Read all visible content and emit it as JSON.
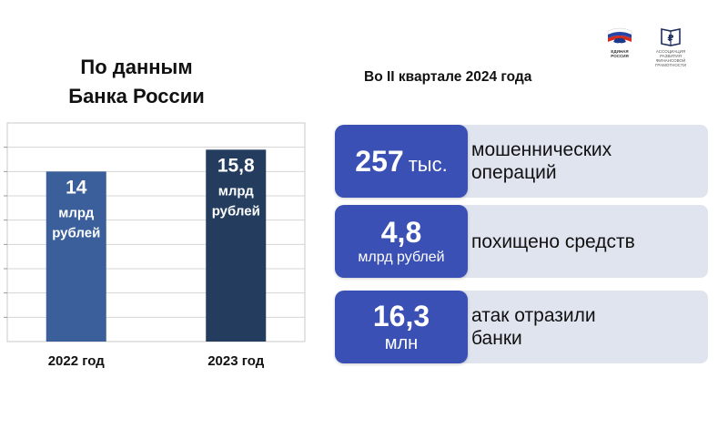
{
  "heading_left": [
    "По данным",
    "Банка России"
  ],
  "heading_right": "Во II квартале 2024 года",
  "logos": {
    "party_text": [
      "ЕДИНАЯ",
      "РОССИЯ"
    ],
    "assoc_text": "АССОЦИАЦИЯ РАЗВИТИЯ ФИНАНСОВОЙ ГРАМОТНОСТИ",
    "party_icon": "bear-flag-icon",
    "assoc_icon": "ruble-book-icon"
  },
  "chart_data": {
    "type": "bar",
    "categories": [
      "2022 год",
      "2023 год"
    ],
    "values": [
      14,
      15.8
    ],
    "value_labels": [
      [
        "14",
        "млрд",
        "рублей"
      ],
      [
        "15,8",
        "млрд",
        "рублей"
      ]
    ],
    "colors": [
      "#3a5f9a",
      "#243c5e"
    ],
    "grid": true,
    "ylim": [
      0,
      18
    ]
  },
  "stats": [
    {
      "value": "257",
      "unit": "тыс.",
      "description": [
        "мошеннических",
        "операций"
      ]
    },
    {
      "value": "4,8",
      "unit": "млрд рублей",
      "description": [
        "похищено средств"
      ]
    },
    {
      "value": "16,3",
      "unit": "млн",
      "description": [
        "атак отразили",
        "банки"
      ]
    }
  ],
  "colors": {
    "accent": "#3a50b4",
    "panel": "#dfe4ef"
  }
}
